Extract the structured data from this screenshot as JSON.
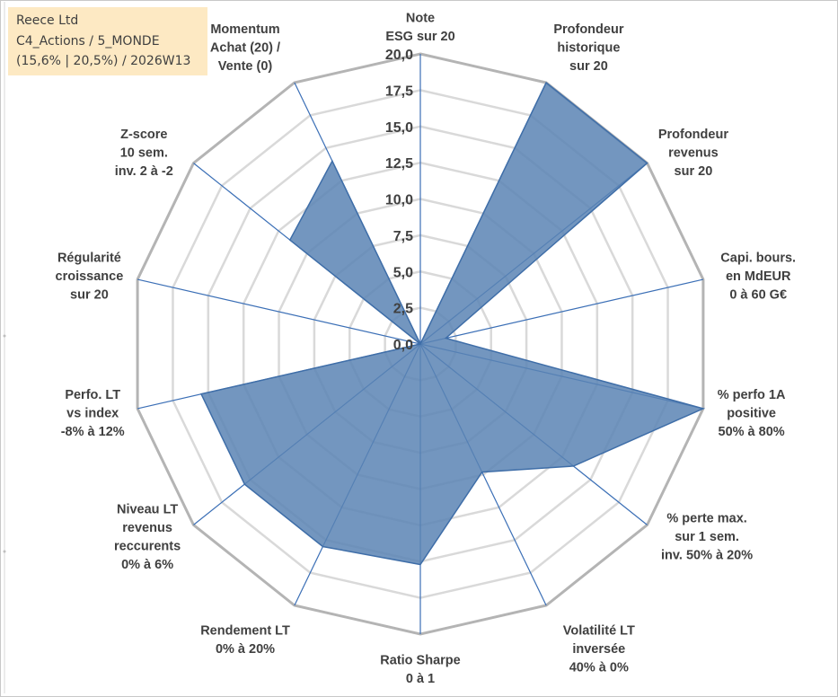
{
  "info_box": {
    "line1": "Reece Ltd",
    "line2": "C4_Actions / 5_MONDE",
    "line3": "(15,6% | 20,5%) / 2026W13"
  },
  "chart_data": {
    "type": "radar",
    "rmin": 0,
    "rmax": 20,
    "tick_labels": [
      "0,0",
      "2,5",
      "5,0",
      "7,5",
      "10,0",
      "12,5",
      "15,0",
      "17,5",
      "20,0"
    ],
    "categories": [
      [
        "Note",
        "ESG sur 20"
      ],
      [
        "Profondeur",
        "historique",
        "sur 20"
      ],
      [
        "Profondeur",
        "revenus",
        "sur 20"
      ],
      [
        "Capi. bours.",
        "en MdEUR",
        "0 à 60 G€"
      ],
      [
        "% perfo 1A",
        "positive",
        "50% à 80%"
      ],
      [
        "% perte max.",
        "sur 1 sem.",
        "inv. 50% à 20%"
      ],
      [
        "Volatilité LT",
        "inversée",
        "40% à 0%"
      ],
      [
        "Ratio Sharpe",
        "0 à 1"
      ],
      [
        "Rendement LT",
        "0% à 20%"
      ],
      [
        "Niveau LT",
        "revenus",
        "reccurents",
        "0% à 6%"
      ],
      [
        "Perfo. LT",
        "vs index",
        "-8% à 12%"
      ],
      [
        "Régularité",
        "croissance",
        "sur 20"
      ],
      [
        "Z-score",
        "10 sem.",
        "inv. 2 à -2"
      ],
      [
        "Momentum",
        "Achat (20) /",
        "Vente (0)"
      ]
    ],
    "series": [
      {
        "name": "Reece Ltd",
        "values": [
          0,
          20,
          20,
          1.8,
          20,
          13.5,
          9.8,
          15.2,
          15.5,
          15.5,
          15.5,
          0,
          11.5,
          14
        ],
        "color": "#5b84b4"
      }
    ]
  }
}
